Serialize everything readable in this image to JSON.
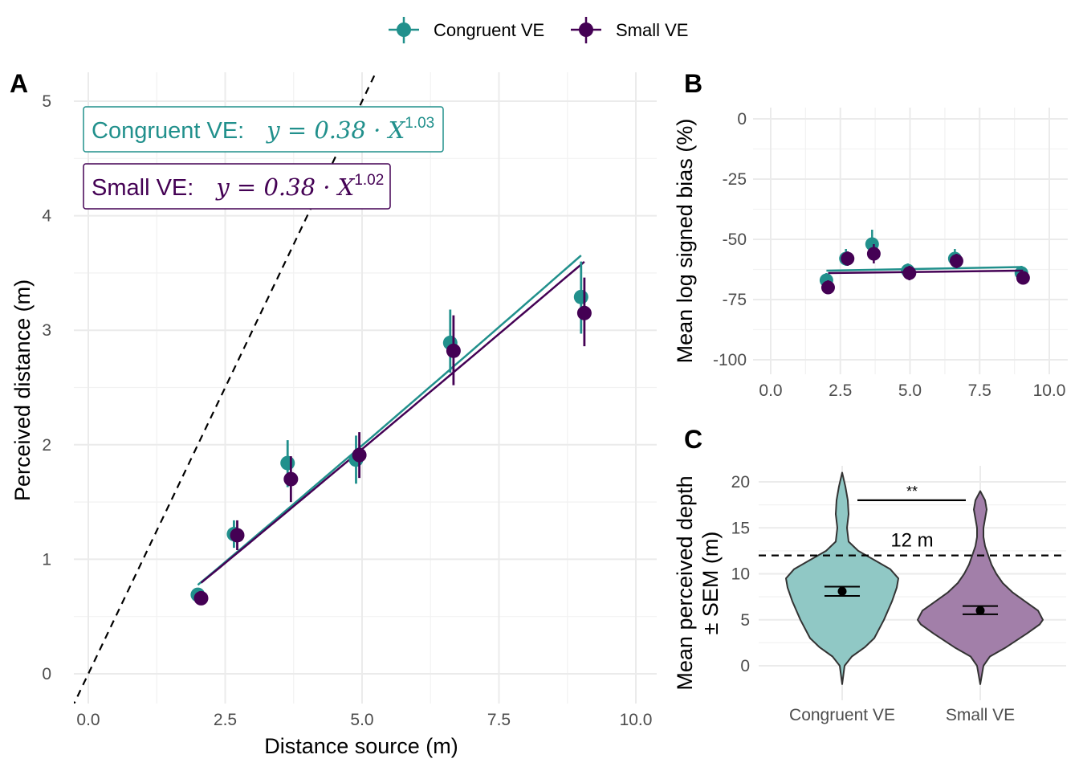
{
  "legend": {
    "items": [
      {
        "label": "Congruent VE",
        "color": "#21908c"
      },
      {
        "label": "Small VE",
        "color": "#440154"
      }
    ]
  },
  "colors": {
    "congruent": "#21908c",
    "small": "#440154",
    "congruent_fill": "#90c8c5",
    "small_fill": "#a27fa9"
  },
  "chart_data": [
    {
      "panel": "A",
      "type": "scatter",
      "xlabel": "Distance source (m)",
      "ylabel": "Perceived distance (m)",
      "xlim": [
        -0.3,
        10.2
      ],
      "ylim": [
        -0.25,
        5.25
      ],
      "x_ticks": [
        "0.0",
        "2.5",
        "5.0",
        "7.5",
        "10.0"
      ],
      "y_ticks": [
        "0",
        "1",
        "2",
        "3",
        "4",
        "5"
      ],
      "grid": true,
      "identity_line": true,
      "series": [
        {
          "name": "Congruent VE",
          "equation": {
            "label": "Congruent VE:",
            "formula": "y = 0.38 · X",
            "exponent": "1.03"
          },
          "fit": {
            "a": 0.38,
            "b": 1.03
          },
          "x": [
            2.0,
            2.66,
            3.64,
            4.89,
            6.61,
            9.0
          ],
          "y": [
            0.69,
            1.22,
            1.84,
            1.87,
            2.89,
            3.29
          ],
          "err_low": [
            0.63,
            1.1,
            1.63,
            1.66,
            2.63,
            2.97
          ],
          "err_high": [
            0.75,
            1.34,
            2.04,
            2.08,
            3.18,
            3.6
          ]
        },
        {
          "name": "Small VE",
          "equation": {
            "label": "Small VE:",
            "formula": "y = 0.38 · X",
            "exponent": "1.02"
          },
          "fit": {
            "a": 0.38,
            "b": 1.02
          },
          "x": [
            2.06,
            2.72,
            3.7,
            4.95,
            6.67,
            9.06
          ],
          "y": [
            0.66,
            1.21,
            1.7,
            1.91,
            2.82,
            3.15
          ],
          "err_low": [
            0.61,
            1.08,
            1.5,
            1.71,
            2.52,
            2.86
          ],
          "err_high": [
            0.71,
            1.34,
            1.9,
            2.11,
            3.13,
            3.46
          ]
        }
      ]
    },
    {
      "panel": "B",
      "type": "scatter",
      "xlabel": "",
      "ylabel": "Mean log signed bias (%)",
      "xlim": [
        -0.5,
        10.5
      ],
      "ylim": [
        -110,
        5
      ],
      "x_ticks": [
        "0.0",
        "2.5",
        "5.0",
        "7.5",
        "10.0"
      ],
      "y_ticks": [
        "0",
        "-25",
        "-50",
        "-75",
        "-100"
      ],
      "grid": true,
      "series": [
        {
          "name": "Congruent VE",
          "x": [
            2.0,
            2.7,
            3.64,
            4.92,
            6.61,
            9.0
          ],
          "y": [
            -67,
            -58,
            -52,
            -63,
            -58,
            -64
          ],
          "err_low": [
            -70,
            -61,
            -57,
            -66,
            -61,
            -67
          ],
          "err_high": [
            -64,
            -54,
            -46,
            -60,
            -54,
            -61
          ],
          "trend": [
            -63,
            -61.5
          ]
        },
        {
          "name": "Small VE",
          "x": [
            2.06,
            2.76,
            3.7,
            4.98,
            6.67,
            9.06
          ],
          "y": [
            -70,
            -58,
            -56,
            -64,
            -59,
            -66
          ],
          "err_low": [
            -72,
            -61,
            -60,
            -67,
            -62,
            -68
          ],
          "err_high": [
            -67,
            -55,
            -52,
            -61,
            -56,
            -64
          ],
          "trend": [
            -64,
            -63
          ]
        }
      ]
    },
    {
      "panel": "C",
      "type": "violin",
      "xlabel": "",
      "ylabel_line1": "Mean perceived depth",
      "ylabel_line2": "± SEM (m)",
      "ylim": [
        -3,
        22
      ],
      "categories": [
        "Congruent VE",
        "Small VE"
      ],
      "y_ticks": [
        "0",
        "5",
        "10",
        "15",
        "20"
      ],
      "grid": true,
      "reference_line": {
        "y": 12,
        "label": "12 m"
      },
      "significance": {
        "label": "**",
        "y": 18
      },
      "series": [
        {
          "name": "Congruent VE",
          "mean": 8.1,
          "sem_low": 7.6,
          "sem_high": 8.6,
          "min": -2,
          "max": 21
        },
        {
          "name": "Small VE",
          "mean": 6.0,
          "sem_low": 5.6,
          "sem_high": 6.5,
          "min": -2,
          "max": 19
        }
      ]
    }
  ]
}
